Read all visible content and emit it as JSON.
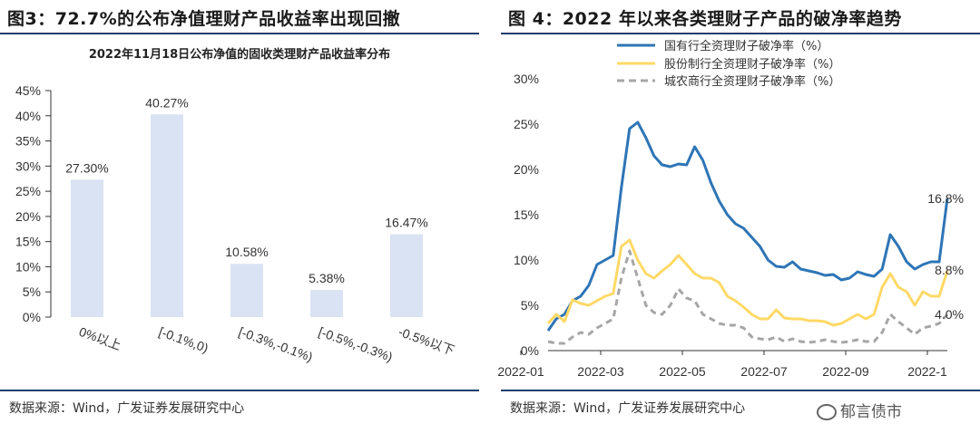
{
  "left_panel": {
    "title": "图3：72.7%的公布净值理财产品收益率出现回撤",
    "source": "数据来源：Wind，广发证券发展研究中心"
  },
  "right_panel": {
    "title": "图 4：2022 年以来各类理财子产品的破净率趋势",
    "source": "数据来源：Wind，广发证券发展研究中心"
  },
  "watermark": {
    "text": "郁言债市",
    "icon": "wechat-icon"
  },
  "colors": {
    "bar": "#dae3f3",
    "series1": "#2e75b6",
    "series2": "#ffd966",
    "series3": "#a6a6a6",
    "rule": "#1f3d6b"
  },
  "chart_data": [
    {
      "type": "bar",
      "title": "2022年11月18日公布净值的固收类理财产品收益率分布",
      "categories": [
        "0%以上",
        "[-0.1%,0)",
        "[-0.3%,-0.1%)",
        "[-0.5%,-0.3%)",
        "-0.5%以下"
      ],
      "values": [
        27.3,
        40.27,
        10.58,
        5.38,
        16.47
      ],
      "value_labels": [
        "27.30%",
        "40.27%",
        "10.58%",
        "5.38%",
        "16.47%"
      ],
      "ylim": [
        0,
        45
      ],
      "yticks": [
        "0%",
        "5%",
        "10%",
        "15%",
        "20%",
        "25%",
        "30%",
        "35%",
        "40%",
        "45%"
      ],
      "xlabel": "",
      "ylabel": ""
    },
    {
      "type": "line",
      "x_ticks": [
        "2022-01",
        "2022-03",
        "2022-05",
        "2022-07",
        "2022-09",
        "2022-1"
      ],
      "ylim": [
        0,
        30
      ],
      "yticks": [
        "0%",
        "5%",
        "10%",
        "15%",
        "20%",
        "25%",
        "30%"
      ],
      "legend_position": "top",
      "series": [
        {
          "name": "国有行全资理财子破净率（%）",
          "end_label": "16.8%",
          "values": [
            2.2,
            3.5,
            4.0,
            5.5,
            6.0,
            7.2,
            9.5,
            10.0,
            10.5,
            18.0,
            24.5,
            25.2,
            23.5,
            21.5,
            20.5,
            20.3,
            20.6,
            20.5,
            22.5,
            21.0,
            18.5,
            16.5,
            15.0,
            14.0,
            13.5,
            12.5,
            11.5,
            10.0,
            9.3,
            9.2,
            9.8,
            9.0,
            8.8,
            8.6,
            8.3,
            8.4,
            7.8,
            8.0,
            8.7,
            8.4,
            8.2,
            9.0,
            12.8,
            11.5,
            9.8,
            9.0,
            9.5,
            9.8,
            9.8,
            16.8
          ]
        },
        {
          "name": "股份制行全资理财子破净率（%）",
          "end_label": "8.8%",
          "values": [
            3.0,
            4.0,
            3.2,
            5.6,
            5.2,
            5.0,
            5.5,
            6.0,
            6.3,
            11.5,
            12.2,
            10.0,
            8.5,
            8.0,
            8.8,
            9.5,
            10.5,
            9.5,
            8.5,
            8.0,
            8.0,
            7.5,
            6.0,
            5.5,
            4.8,
            4.0,
            3.5,
            3.5,
            4.5,
            3.6,
            3.5,
            3.5,
            3.3,
            3.3,
            3.2,
            2.8,
            3.0,
            3.5,
            4.0,
            3.5,
            4.0,
            7.0,
            8.5,
            7.0,
            6.5,
            5.0,
            6.5,
            6.0,
            6.0,
            8.8
          ]
        },
        {
          "name": "城农商行全资理财子破净率（%）",
          "end_label": "4.0%",
          "values": [
            1.0,
            0.8,
            0.8,
            1.5,
            2.0,
            1.8,
            2.5,
            3.0,
            3.5,
            8.0,
            11.0,
            8.0,
            5.0,
            4.2,
            4.0,
            5.0,
            6.8,
            5.8,
            5.5,
            4.0,
            3.5,
            3.0,
            2.8,
            2.8,
            2.5,
            1.5,
            1.3,
            1.2,
            1.5,
            1.0,
            1.3,
            1.0,
            0.9,
            1.0,
            1.2,
            1.0,
            0.9,
            1.0,
            1.2,
            1.0,
            1.0,
            2.0,
            4.0,
            3.2,
            2.5,
            1.8,
            2.5,
            2.7,
            3.0,
            4.0
          ]
        }
      ]
    }
  ]
}
